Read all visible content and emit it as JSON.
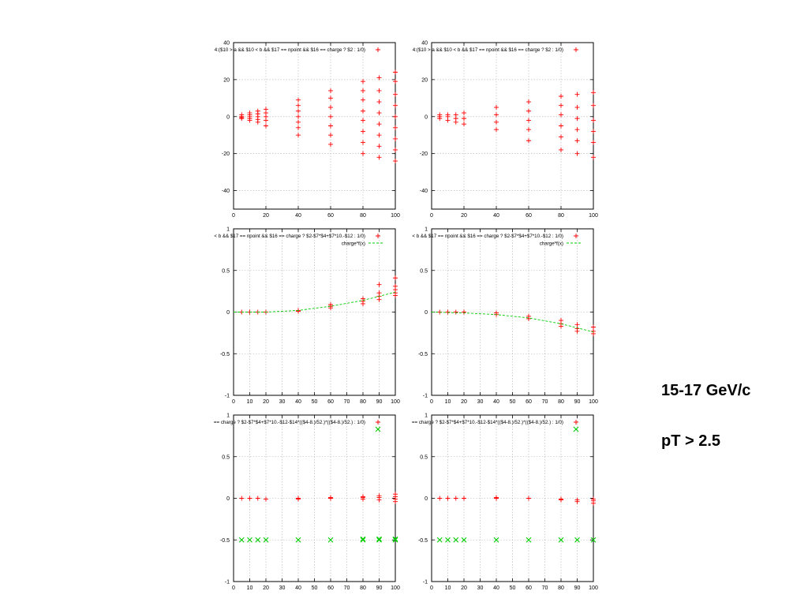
{
  "side_labels": {
    "energy": "15-17 GeV/c",
    "pt_cut": "pT > 2.5"
  },
  "colors": {
    "red": "#ff0000",
    "green": "#00cc00",
    "grid": "#b0b0b0",
    "axis": "#000000"
  },
  "chart_data": [
    {
      "type": "scatter",
      "title": "4:($10 > a && $10 < b && $17 == npoint && $16 == charge ? $2 : 1/0)",
      "xlim": [
        0,
        100
      ],
      "ylim": [
        -50,
        40
      ],
      "xticks": [
        0,
        20,
        40,
        60,
        80,
        100
      ],
      "yticks": [
        -40,
        -20,
        0,
        20,
        40
      ],
      "grid": true,
      "legend_position": "top-right",
      "series": [
        {
          "name": "",
          "color": "#ff0000",
          "marker": "plus",
          "points": [
            [
              5,
              -1
            ],
            [
              5,
              0
            ],
            [
              5,
              1
            ],
            [
              5,
              -0.5
            ],
            [
              10,
              -2
            ],
            [
              10,
              0
            ],
            [
              10,
              2
            ],
            [
              10,
              -1
            ],
            [
              10,
              1
            ],
            [
              15,
              -3
            ],
            [
              15,
              0
            ],
            [
              15,
              3
            ],
            [
              15,
              -1.5
            ],
            [
              15,
              1.5
            ],
            [
              20,
              -5
            ],
            [
              20,
              -2
            ],
            [
              20,
              0
            ],
            [
              20,
              2
            ],
            [
              20,
              4
            ],
            [
              40,
              -10
            ],
            [
              40,
              -6
            ],
            [
              40,
              -3
            ],
            [
              40,
              0
            ],
            [
              40,
              3
            ],
            [
              40,
              6
            ],
            [
              40,
              9
            ],
            [
              60,
              -15
            ],
            [
              60,
              -10
            ],
            [
              60,
              -5
            ],
            [
              60,
              0
            ],
            [
              60,
              5
            ],
            [
              60,
              10
            ],
            [
              60,
              14
            ],
            [
              80,
              -20
            ],
            [
              80,
              -14
            ],
            [
              80,
              -8
            ],
            [
              80,
              -2
            ],
            [
              80,
              3
            ],
            [
              80,
              9
            ],
            [
              80,
              14
            ],
            [
              80,
              19
            ],
            [
              90,
              -22
            ],
            [
              90,
              -16
            ],
            [
              90,
              -10
            ],
            [
              90,
              -4
            ],
            [
              90,
              2
            ],
            [
              90,
              8
            ],
            [
              90,
              14
            ],
            [
              90,
              21
            ],
            [
              100,
              -24
            ],
            [
              100,
              -18
            ],
            [
              100,
              -12
            ],
            [
              100,
              -6
            ],
            [
              100,
              0
            ],
            [
              100,
              6
            ],
            [
              100,
              12
            ],
            [
              100,
              19
            ],
            [
              100,
              24
            ]
          ]
        }
      ]
    },
    {
      "type": "scatter",
      "title": "4:($10 > a && $10 < b && $17 == npoint && $16 == charge ? $2 : 1/0)",
      "xlim": [
        0,
        100
      ],
      "ylim": [
        -50,
        40
      ],
      "xticks": [
        0,
        20,
        40,
        60,
        80,
        100
      ],
      "yticks": [
        -40,
        -20,
        0,
        20,
        40
      ],
      "grid": true,
      "legend_position": "top-right",
      "series": [
        {
          "name": "",
          "color": "#ff0000",
          "marker": "plus",
          "points": [
            [
              5,
              -1
            ],
            [
              5,
              0
            ],
            [
              5,
              1
            ],
            [
              10,
              -2
            ],
            [
              10,
              0
            ],
            [
              10,
              1
            ],
            [
              15,
              -3
            ],
            [
              15,
              -1
            ],
            [
              15,
              1
            ],
            [
              20,
              -4
            ],
            [
              20,
              -1
            ],
            [
              20,
              2
            ],
            [
              40,
              -7
            ],
            [
              40,
              -3
            ],
            [
              40,
              1
            ],
            [
              40,
              5
            ],
            [
              60,
              -13
            ],
            [
              60,
              -7
            ],
            [
              60,
              -2
            ],
            [
              60,
              3
            ],
            [
              60,
              8
            ],
            [
              80,
              -18
            ],
            [
              80,
              -11
            ],
            [
              80,
              -5
            ],
            [
              80,
              1
            ],
            [
              80,
              6
            ],
            [
              80,
              11
            ],
            [
              90,
              -20
            ],
            [
              90,
              -13
            ],
            [
              90,
              -7
            ],
            [
              90,
              -1
            ],
            [
              90,
              5
            ],
            [
              90,
              12
            ],
            [
              100,
              -22
            ],
            [
              100,
              -14
            ],
            [
              100,
              -8
            ],
            [
              100,
              -2
            ],
            [
              100,
              6
            ],
            [
              100,
              13
            ]
          ]
        }
      ]
    },
    {
      "type": "scatter",
      "title": "< b && $17 == npoint && $16 == charge ? $2-$7*$4+$7*10.-$12 : 1/0)",
      "xlim": [
        0,
        100
      ],
      "ylim": [
        -1,
        1
      ],
      "xticks": [
        0,
        10,
        20,
        30,
        40,
        50,
        60,
        70,
        80,
        90,
        100
      ],
      "yticks": [
        -1,
        -0.5,
        0,
        0.5,
        1
      ],
      "grid": true,
      "legend_position": "top-right",
      "series": [
        {
          "name": "",
          "color": "#ff0000",
          "marker": "plus",
          "points": [
            [
              5,
              0
            ],
            [
              10,
              0
            ],
            [
              15,
              0
            ],
            [
              20,
              0
            ],
            [
              40,
              0.01
            ],
            [
              40,
              0.02
            ],
            [
              60,
              0.05
            ],
            [
              60,
              0.07
            ],
            [
              60,
              0.09
            ],
            [
              80,
              0.1
            ],
            [
              80,
              0.13
            ],
            [
              80,
              0.16
            ],
            [
              90,
              0.15
            ],
            [
              90,
              0.19
            ],
            [
              90,
              0.23
            ],
            [
              90,
              0.33
            ],
            [
              100,
              0.2
            ],
            [
              100,
              0.23
            ],
            [
              100,
              0.27
            ],
            [
              100,
              0.31
            ],
            [
              100,
              0.41
            ]
          ]
        },
        {
          "name": "charge*f(x)",
          "color": "#00cc00",
          "line": "dashed",
          "points": [
            [
              0,
              0
            ],
            [
              20,
              0
            ],
            [
              40,
              0.02
            ],
            [
              60,
              0.07
            ],
            [
              80,
              0.14
            ],
            [
              90,
              0.19
            ],
            [
              100,
              0.24
            ]
          ]
        }
      ]
    },
    {
      "type": "scatter",
      "title": "< b && $17 == npoint && $16 == charge ? $2-$7*$4+$7*10.-$12 : 1/0)",
      "xlim": [
        0,
        100
      ],
      "ylim": [
        -1,
        1
      ],
      "xticks": [
        0,
        10,
        20,
        30,
        40,
        50,
        60,
        70,
        80,
        90,
        100
      ],
      "yticks": [
        -1,
        -0.5,
        0,
        0.5,
        1
      ],
      "grid": true,
      "legend_position": "top-right",
      "series": [
        {
          "name": "",
          "color": "#ff0000",
          "marker": "plus",
          "points": [
            [
              5,
              0
            ],
            [
              10,
              0
            ],
            [
              15,
              0
            ],
            [
              20,
              0
            ],
            [
              40,
              -0.01
            ],
            [
              40,
              -0.03
            ],
            [
              60,
              -0.05
            ],
            [
              60,
              -0.08
            ],
            [
              80,
              -0.1
            ],
            [
              80,
              -0.14
            ],
            [
              80,
              -0.17
            ],
            [
              90,
              -0.15
            ],
            [
              90,
              -0.2
            ],
            [
              90,
              -0.23
            ],
            [
              100,
              -0.18
            ],
            [
              100,
              -0.23
            ],
            [
              100,
              -0.26
            ]
          ]
        },
        {
          "name": "charge*f(x)",
          "color": "#00cc00",
          "line": "dashed",
          "points": [
            [
              0,
              0
            ],
            [
              20,
              -0.01
            ],
            [
              40,
              -0.03
            ],
            [
              60,
              -0.07
            ],
            [
              80,
              -0.14
            ],
            [
              90,
              -0.19
            ],
            [
              100,
              -0.24
            ]
          ]
        }
      ]
    },
    {
      "type": "scatter",
      "title": "== charge ? $2-$7*$4+$7*10.-$12-$14*(($4-8.)/52.)*(($4-8.)/52.) : 1/0)",
      "xlim": [
        0,
        100
      ],
      "ylim": [
        -1,
        1
      ],
      "xticks": [
        0,
        10,
        20,
        30,
        40,
        50,
        60,
        70,
        80,
        90,
        100
      ],
      "yticks": [
        -1,
        -0.5,
        0,
        0.5,
        1
      ],
      "grid": true,
      "legend_position": "top-right",
      "series": [
        {
          "name": "",
          "color": "#ff0000",
          "marker": "plus",
          "points": [
            [
              5,
              0
            ],
            [
              10,
              0
            ],
            [
              15,
              0
            ],
            [
              20,
              -0.01
            ],
            [
              40,
              -0.01
            ],
            [
              40,
              0
            ],
            [
              60,
              0
            ],
            [
              60,
              0.01
            ],
            [
              80,
              -0.01
            ],
            [
              80,
              0.01
            ],
            [
              80,
              0.02
            ],
            [
              90,
              -0.02
            ],
            [
              90,
              0.01
            ],
            [
              90,
              0.03
            ],
            [
              100,
              -0.04
            ],
            [
              100,
              -0.01
            ],
            [
              100,
              0.02
            ],
            [
              100,
              0.05
            ]
          ]
        },
        {
          "name": "",
          "color": "#00cc00",
          "marker": "cross",
          "points": [
            [
              5,
              -0.5
            ],
            [
              10,
              -0.5
            ],
            [
              15,
              -0.5
            ],
            [
              20,
              -0.5
            ],
            [
              40,
              -0.5
            ],
            [
              60,
              -0.5
            ],
            [
              80,
              -0.5
            ],
            [
              80,
              -0.49
            ],
            [
              90,
              -0.5
            ],
            [
              90,
              -0.49
            ],
            [
              100,
              -0.5
            ],
            [
              100,
              -0.49
            ]
          ]
        }
      ]
    },
    {
      "type": "scatter",
      "title": "== charge ? $2-$7*$4+$7*10.-$12-$14*(($4-8.)/52.)*(($4-8.)/52.) : 1/0)",
      "xlim": [
        0,
        100
      ],
      "ylim": [
        -1,
        1
      ],
      "xticks": [
        0,
        10,
        20,
        30,
        40,
        50,
        60,
        70,
        80,
        90,
        100
      ],
      "yticks": [
        -1,
        -0.5,
        0,
        0.5,
        1
      ],
      "grid": true,
      "legend_position": "top-right",
      "series": [
        {
          "name": "",
          "color": "#ff0000",
          "marker": "plus",
          "points": [
            [
              5,
              0
            ],
            [
              10,
              0
            ],
            [
              15,
              0
            ],
            [
              20,
              0
            ],
            [
              40,
              0
            ],
            [
              40,
              0.01
            ],
            [
              60,
              0
            ],
            [
              80,
              -0.01
            ],
            [
              80,
              -0.02
            ],
            [
              90,
              -0.02
            ],
            [
              90,
              -0.04
            ],
            [
              100,
              -0.03
            ],
            [
              100,
              -0.06
            ],
            [
              100,
              -0.01
            ]
          ]
        },
        {
          "name": "",
          "color": "#00cc00",
          "marker": "cross",
          "points": [
            [
              5,
              -0.5
            ],
            [
              10,
              -0.5
            ],
            [
              15,
              -0.5
            ],
            [
              20,
              -0.5
            ],
            [
              40,
              -0.5
            ],
            [
              60,
              -0.5
            ],
            [
              80,
              -0.5
            ],
            [
              90,
              -0.5
            ],
            [
              100,
              -0.5
            ]
          ]
        }
      ]
    }
  ]
}
